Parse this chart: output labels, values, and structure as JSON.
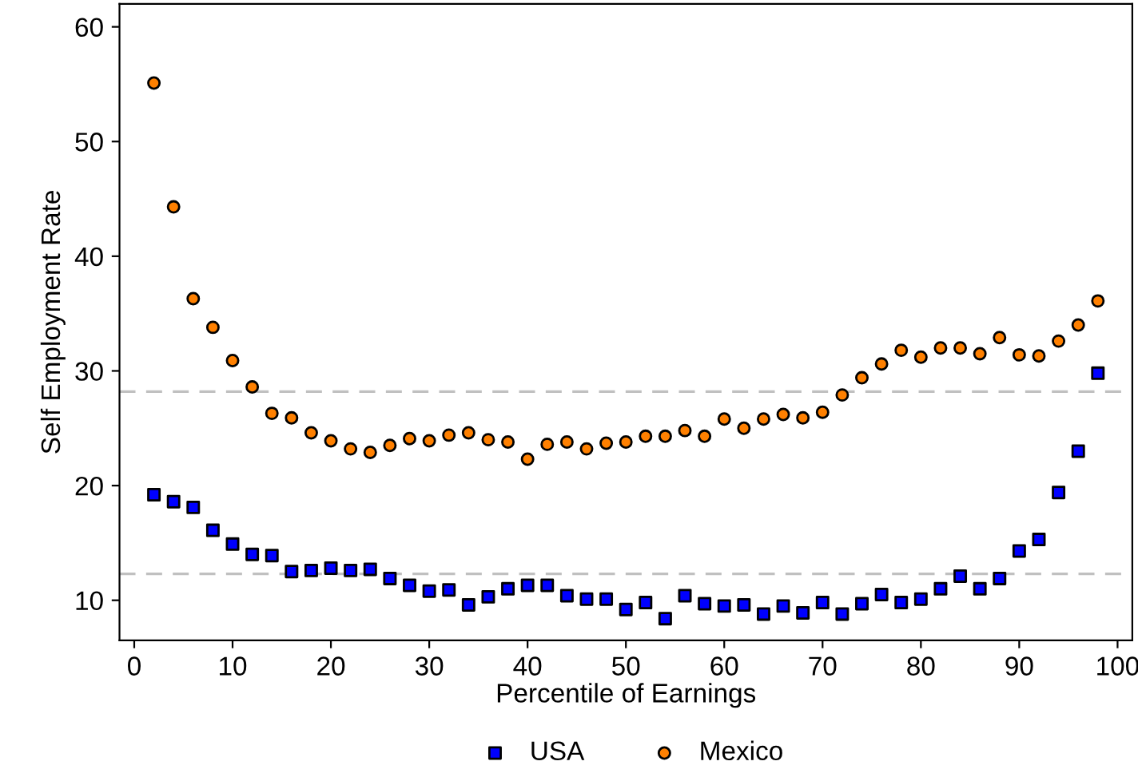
{
  "chart_data": {
    "type": "scatter",
    "xlabel": "Percentile of Earnings",
    "ylabel": "Self Employment Rate",
    "x": [
      2,
      4,
      6,
      8,
      10,
      12,
      14,
      16,
      18,
      20,
      22,
      24,
      26,
      28,
      30,
      32,
      34,
      36,
      38,
      40,
      42,
      44,
      46,
      48,
      50,
      52,
      54,
      56,
      58,
      60,
      62,
      64,
      66,
      68,
      70,
      72,
      74,
      76,
      78,
      80,
      82,
      84,
      86,
      88,
      90,
      92,
      94,
      96,
      98
    ],
    "series": [
      {
        "name": "USA",
        "color": "#0000ff",
        "marker": "square",
        "values": [
          19.2,
          18.6,
          18.1,
          16.1,
          14.9,
          14.0,
          13.9,
          12.5,
          12.6,
          12.8,
          12.6,
          12.7,
          11.9,
          11.3,
          10.8,
          10.9,
          9.6,
          10.3,
          11.0,
          11.3,
          11.3,
          10.4,
          10.1,
          10.1,
          9.2,
          9.8,
          8.4,
          10.4,
          9.7,
          9.5,
          9.6,
          8.8,
          9.5,
          8.9,
          9.8,
          8.8,
          9.7,
          10.5,
          9.8,
          10.1,
          11.0,
          12.1,
          11.0,
          11.9,
          14.3,
          15.3,
          19.4,
          23.0,
          29.8
        ]
      },
      {
        "name": "Mexico",
        "color": "#ff8000",
        "marker": "circle",
        "values": [
          55.1,
          44.3,
          36.3,
          33.8,
          30.9,
          28.6,
          26.3,
          25.9,
          24.6,
          23.9,
          23.2,
          22.9,
          23.5,
          24.1,
          23.9,
          24.4,
          24.6,
          24.0,
          23.8,
          22.3,
          23.6,
          23.8,
          23.2,
          23.7,
          23.8,
          24.3,
          24.3,
          24.8,
          24.3,
          25.8,
          25.0,
          25.8,
          26.2,
          25.9,
          26.4,
          27.9,
          29.4,
          30.6,
          31.8,
          31.2,
          32.0,
          32.0,
          31.5,
          32.9,
          31.4,
          31.3,
          32.6,
          34.0,
          36.1
        ]
      }
    ],
    "ref_lines": [
      {
        "axis": "y",
        "value": 28.2,
        "color": "#c0c0c0",
        "line_style": "dashed"
      },
      {
        "axis": "y",
        "value": 12.3,
        "color": "#c0c0c0",
        "line_style": "dashed"
      }
    ],
    "xlim": [
      -1.5,
      101.5
    ],
    "ylim": [
      6.5,
      62
    ],
    "xticks": [
      0,
      10,
      20,
      30,
      40,
      50,
      60,
      70,
      80,
      90,
      100
    ],
    "yticks": [
      10,
      20,
      30,
      40,
      50,
      60
    ],
    "grid": false,
    "legend": "bottom"
  }
}
